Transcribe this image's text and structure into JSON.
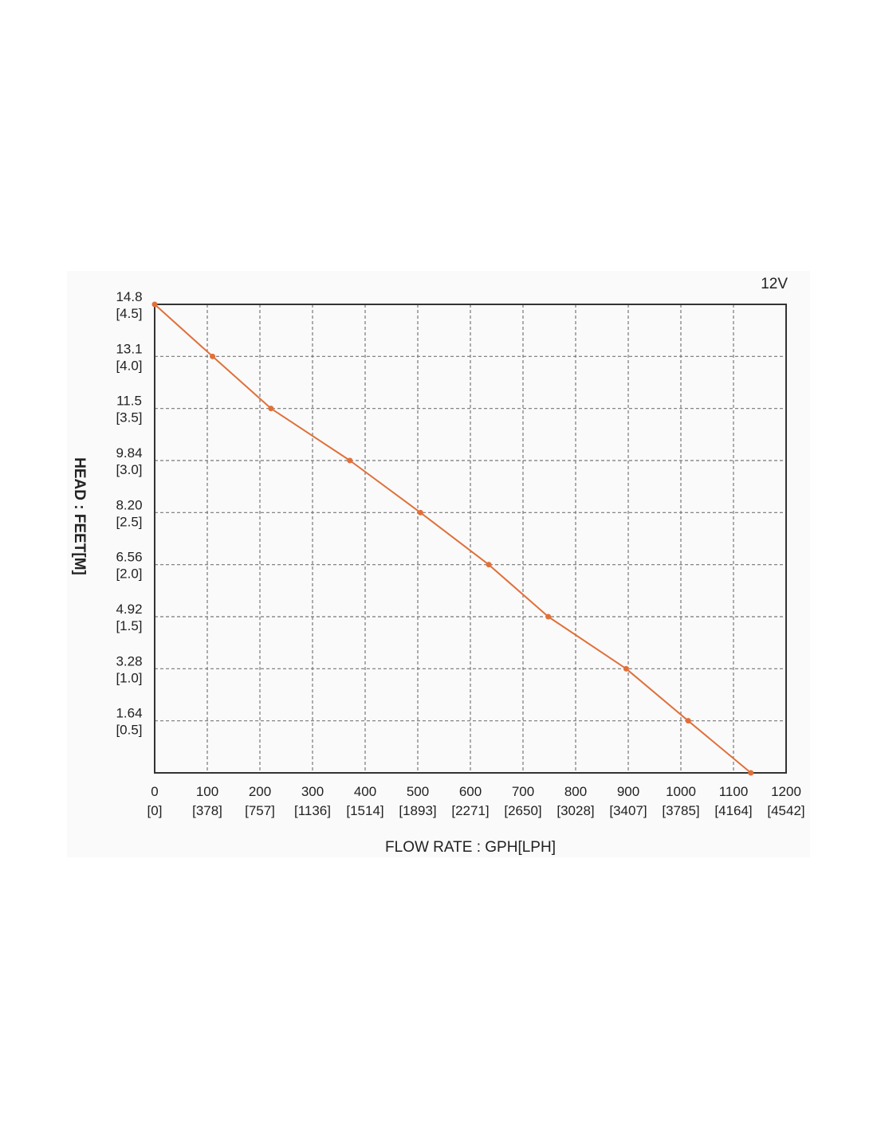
{
  "chart_data": {
    "type": "line",
    "title": "12V",
    "xlabel": "FLOW RATE : GPH[LPH]",
    "ylabel": "HEAD : FEET[M]",
    "xlim": [
      0,
      1200
    ],
    "ylim": [
      0,
      4.5
    ],
    "grid": true,
    "x_ticks": [
      {
        "value": 0,
        "label": "0",
        "sub": "[0]"
      },
      {
        "value": 100,
        "label": "100",
        "sub": "[378]"
      },
      {
        "value": 200,
        "label": "200",
        "sub": "[757]"
      },
      {
        "value": 300,
        "label": "300",
        "sub": "[1136]"
      },
      {
        "value": 400,
        "label": "400",
        "sub": "[1514]"
      },
      {
        "value": 500,
        "label": "500",
        "sub": "[1893]"
      },
      {
        "value": 600,
        "label": "600",
        "sub": "[2271]"
      },
      {
        "value": 700,
        "label": "700",
        "sub": "[2650]"
      },
      {
        "value": 800,
        "label": "800",
        "sub": "[3028]"
      },
      {
        "value": 900,
        "label": "900",
        "sub": "[3407]"
      },
      {
        "value": 1000,
        "label": "1000",
        "sub": "[3785]"
      },
      {
        "value": 1100,
        "label": "1100",
        "sub": "[4164]"
      },
      {
        "value": 1200,
        "label": "1200",
        "sub": "[4542]"
      }
    ],
    "y_ticks": [
      {
        "value": 4.5,
        "label": "14.8",
        "sub": "[4.5]"
      },
      {
        "value": 4.0,
        "label": "13.1",
        "sub": "[4.0]"
      },
      {
        "value": 3.5,
        "label": "11.5",
        "sub": "[3.5]"
      },
      {
        "value": 3.0,
        "label": "9.84",
        "sub": "[3.0]"
      },
      {
        "value": 2.5,
        "label": "8.20",
        "sub": "[2.5]"
      },
      {
        "value": 2.0,
        "label": "6.56",
        "sub": "[2.0]"
      },
      {
        "value": 1.5,
        "label": "4.92",
        "sub": "[1.5]"
      },
      {
        "value": 1.0,
        "label": "3.28",
        "sub": "[1.0]"
      },
      {
        "value": 0.5,
        "label": "1.64",
        "sub": "[0.5]"
      }
    ],
    "series": [
      {
        "x": [
          0,
          110,
          221,
          371,
          505,
          635,
          748,
          896,
          1014,
          1133
        ],
        "y": [
          4.5,
          4.0,
          3.5,
          3.0,
          2.5,
          2.0,
          1.5,
          1.0,
          0.5,
          0.0
        ],
        "color": "#e0703a"
      }
    ]
  }
}
